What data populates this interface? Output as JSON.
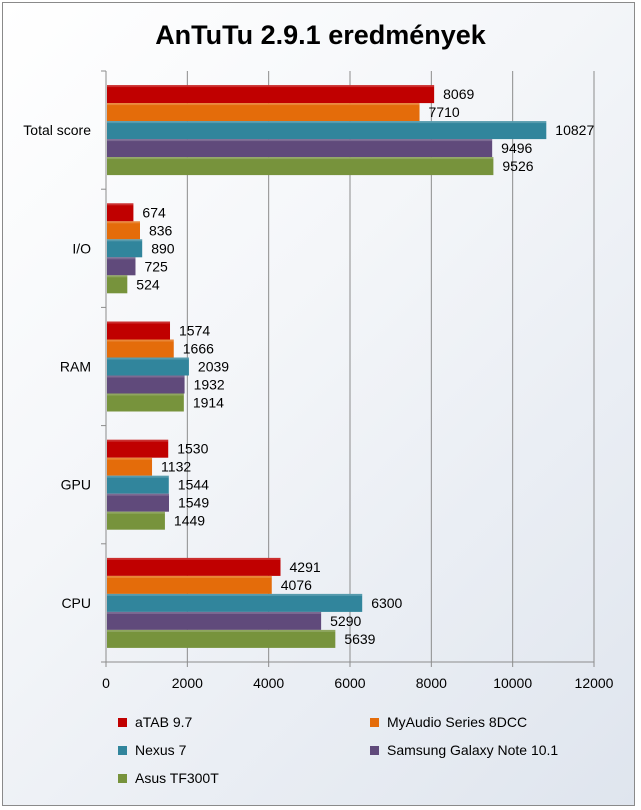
{
  "chart_data": {
    "type": "bar",
    "orientation": "horizontal",
    "title": "AnTuTu 2.9.1 eredmények",
    "categories": [
      "Total score",
      "I/O",
      "RAM",
      "GPU",
      "CPU"
    ],
    "series": [
      {
        "name": "aTAB 9.7",
        "color": "#c00000",
        "values": [
          8069,
          674,
          1574,
          1530,
          4291
        ]
      },
      {
        "name": "MyAudio Series 8DCC",
        "color": "#e46c0a",
        "values": [
          7710,
          836,
          1666,
          1132,
          4076
        ]
      },
      {
        "name": "Nexus 7",
        "color": "#31859c",
        "values": [
          10827,
          890,
          2039,
          1544,
          6300
        ]
      },
      {
        "name": "Samsung Galaxy Note 10.1",
        "color": "#604a7b",
        "values": [
          9496,
          725,
          1932,
          1549,
          5290
        ]
      },
      {
        "name": "Asus TF300T",
        "color": "#77933c",
        "values": [
          9526,
          524,
          1914,
          1449,
          5639
        ]
      }
    ],
    "xlim": [
      0,
      12000
    ],
    "xticks": [
      "0",
      "2000",
      "4000",
      "6000",
      "8000",
      "10000",
      "12000"
    ],
    "grid": true,
    "data_labels": true,
    "legend_position": "bottom"
  }
}
